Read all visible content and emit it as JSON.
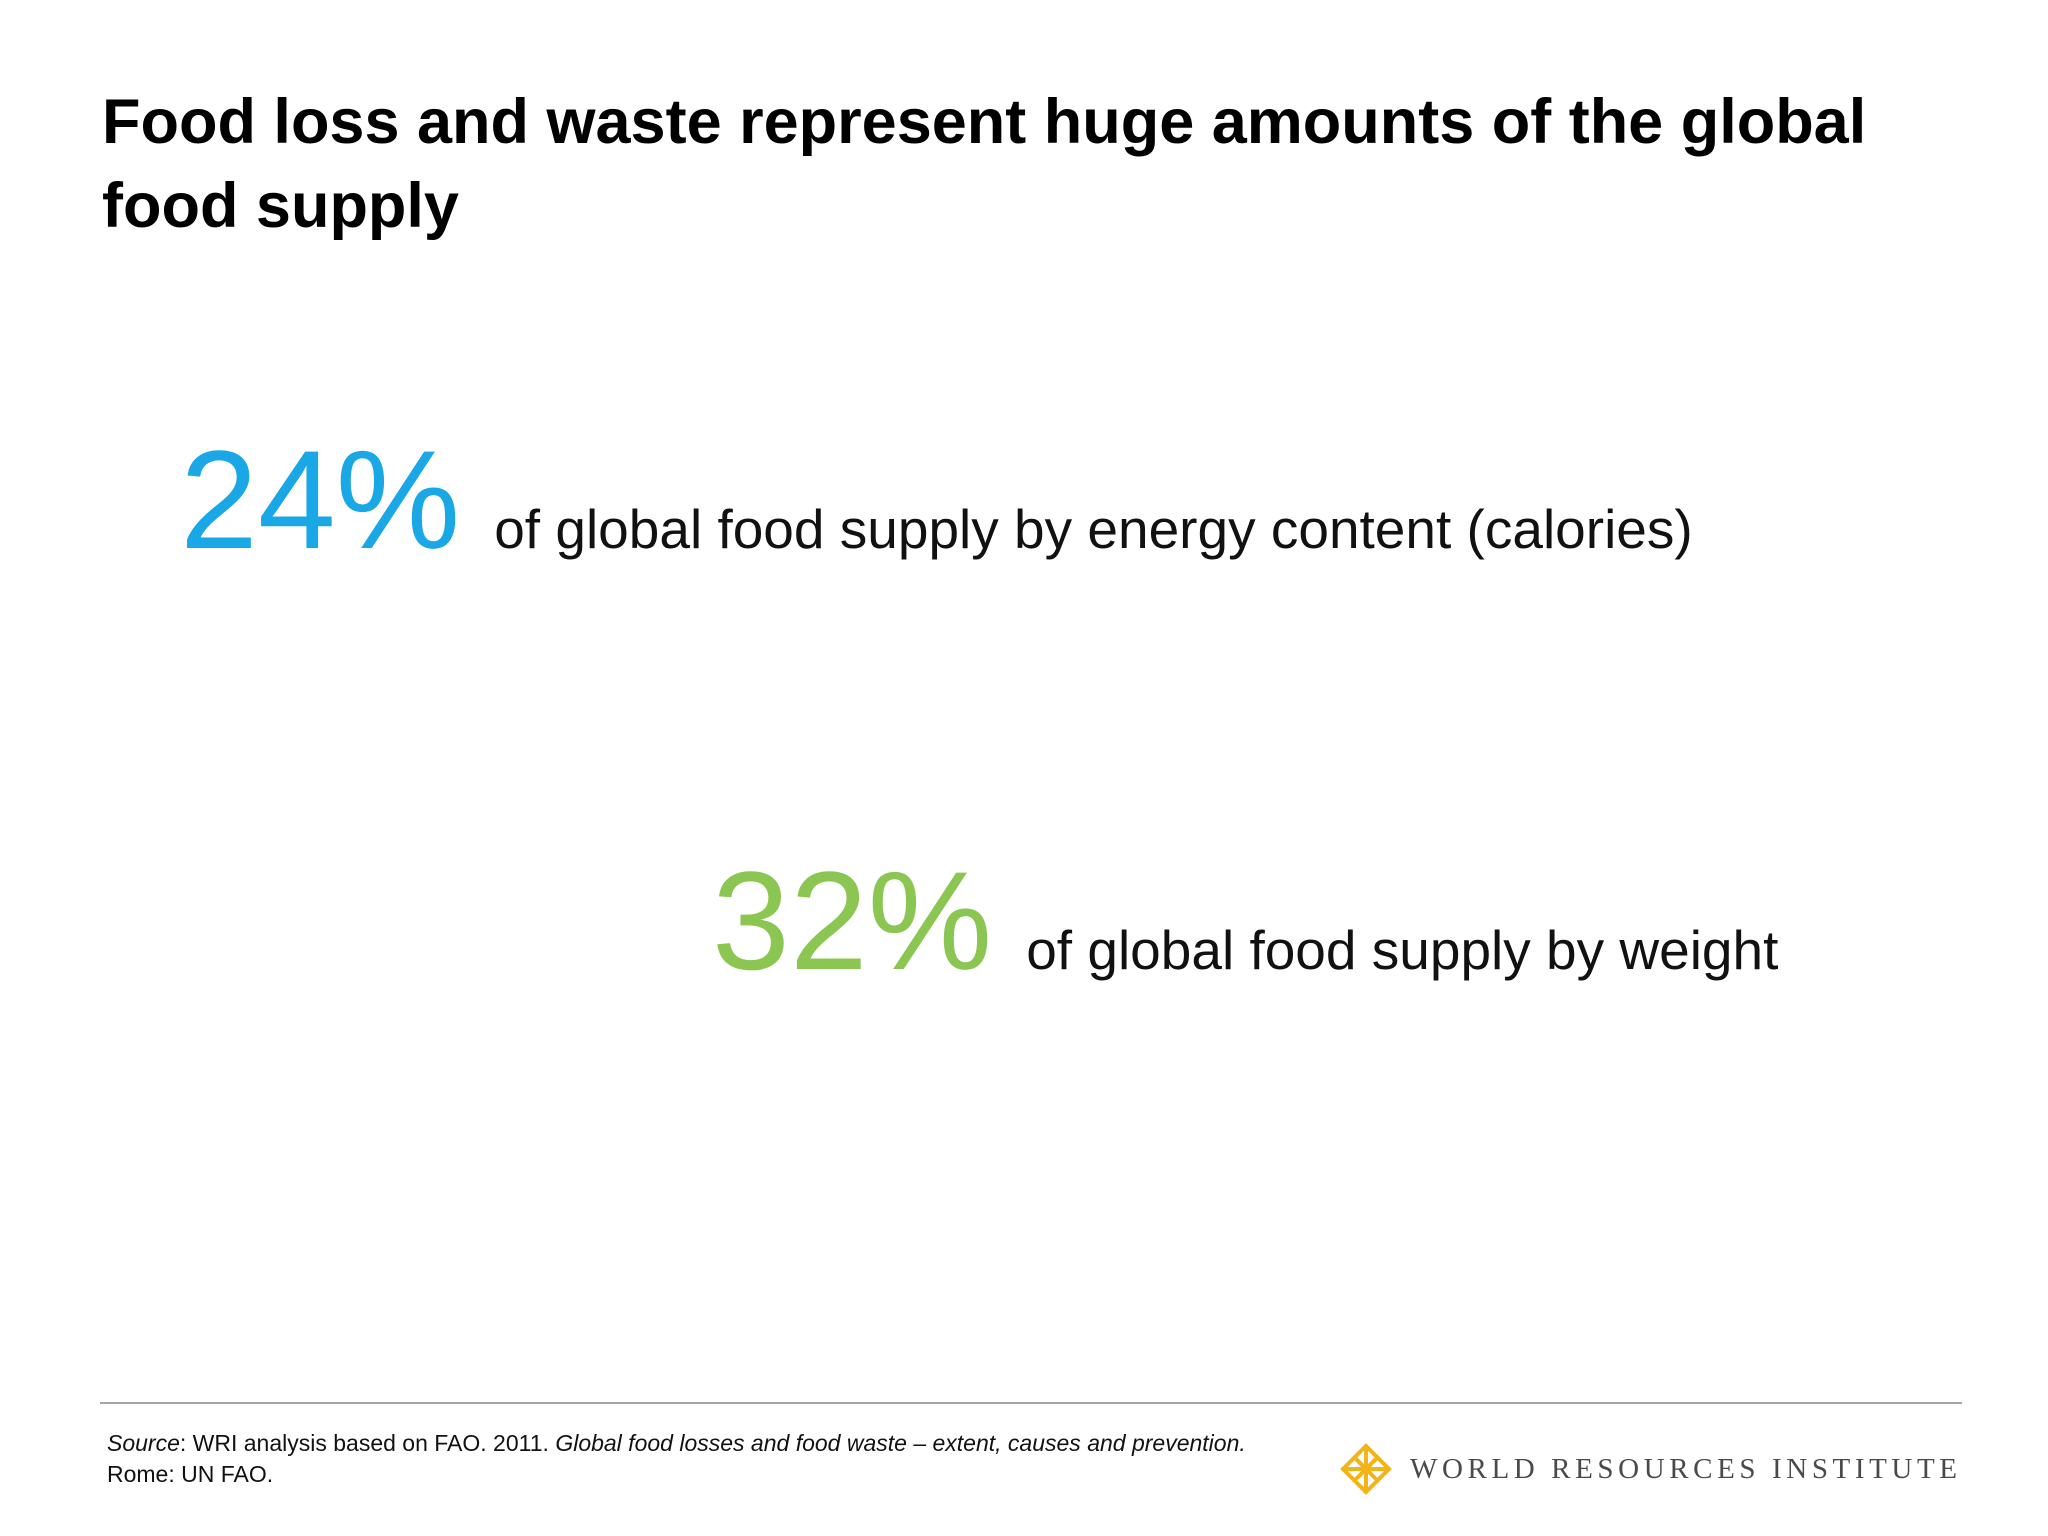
{
  "slide": {
    "title": "Food loss and waste represent huge amounts of the global food supply"
  },
  "stats": [
    {
      "value": "24%",
      "description": "of global food supply by energy content (calories)",
      "color": "#1aa7e6"
    },
    {
      "value": "32%",
      "description": "of global food supply by weight",
      "color": "#8bc653"
    }
  ],
  "footer": {
    "source_label": "Source",
    "source_text_1": ": WRI analysis based on FAO. 2011. ",
    "source_title": "Global food losses and food waste – extent, causes and prevention.",
    "source_text_2": " Rome: UN FAO.",
    "logo_text": "WORLD RESOURCES INSTITUTE",
    "logo_icon": "wri-lattice-icon",
    "logo_color": "#f2b418"
  }
}
